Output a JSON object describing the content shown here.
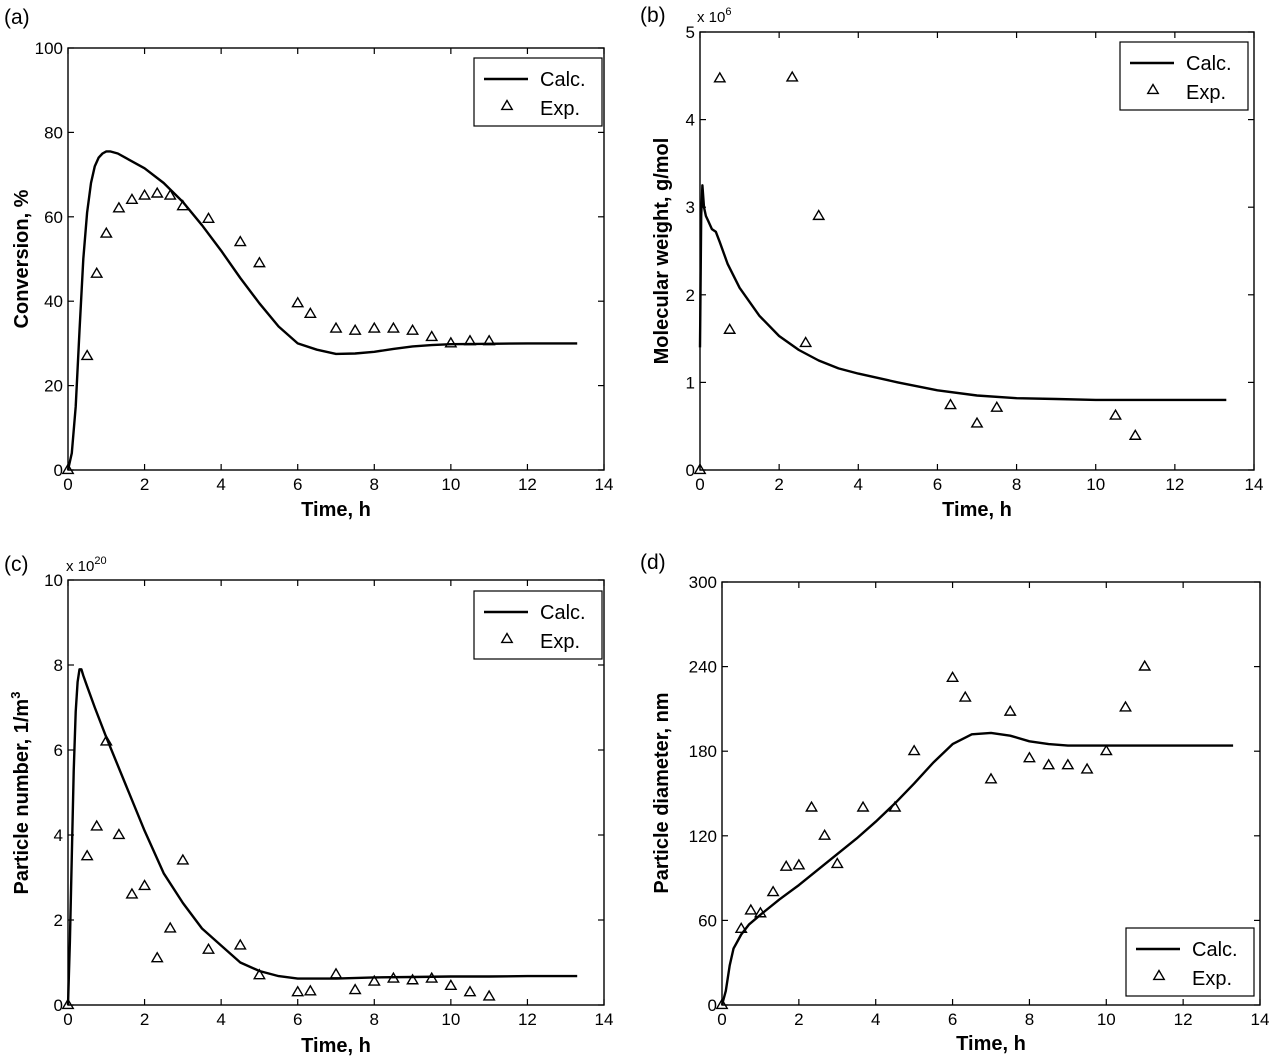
{
  "chart_data": [
    {
      "id": "a",
      "type": "line",
      "panel_label": "(a)",
      "xlabel": "Time, h",
      "ylabel": "Conversion, %",
      "ylabel_sup": "",
      "ylabel_tail": "",
      "xlim": [
        0,
        14
      ],
      "ylim": [
        0,
        100
      ],
      "xticks": [
        0,
        2,
        4,
        6,
        8,
        10,
        12,
        14
      ],
      "yticks": [
        0,
        20,
        40,
        60,
        80,
        100
      ],
      "multiplier_base": "",
      "multiplier_exp": "",
      "legend_position": "top-right",
      "series": [
        {
          "name": "Calc.",
          "style": "line",
          "x": [
            0,
            0.1,
            0.2,
            0.3,
            0.4,
            0.5,
            0.6,
            0.7,
            0.8,
            0.9,
            1.0,
            1.1,
            1.3,
            1.5,
            2.0,
            2.5,
            3.0,
            3.5,
            4.0,
            4.5,
            5.0,
            5.5,
            6.0,
            6.5,
            7.0,
            7.5,
            8.0,
            8.5,
            9.0,
            9.5,
            10,
            11,
            12,
            13.3
          ],
          "y": [
            0,
            4,
            15,
            33,
            50,
            61,
            68,
            72,
            74,
            75,
            75.5,
            75.5,
            75,
            74,
            71.5,
            68,
            63.5,
            58,
            52,
            45.5,
            39.5,
            34,
            30,
            28.5,
            27.5,
            27.6,
            28,
            28.7,
            29.3,
            29.6,
            29.8,
            29.9,
            30,
            30
          ]
        },
        {
          "name": "Exp.",
          "style": "marker",
          "x": [
            0,
            0.5,
            0.75,
            1.0,
            1.33,
            1.67,
            2.0,
            2.33,
            2.67,
            3.0,
            3.67,
            4.5,
            5.0,
            6.0,
            6.33,
            7.0,
            7.5,
            8.0,
            8.5,
            9.0,
            9.5,
            10.0,
            10.5,
            11.0
          ],
          "y": [
            0,
            27,
            46.5,
            56,
            62,
            64,
            65,
            65.5,
            65,
            62.5,
            59.5,
            54,
            49,
            39.5,
            37,
            33.5,
            33,
            33.5,
            33.5,
            33,
            31.5,
            30,
            30.5,
            30.5
          ]
        }
      ]
    },
    {
      "id": "b",
      "type": "line",
      "panel_label": "(b)",
      "xlabel": "Time, h",
      "ylabel": "Molecular weight, g/mol",
      "ylabel_sup": "",
      "ylabel_tail": "",
      "xlim": [
        0,
        14
      ],
      "ylim": [
        0,
        5
      ],
      "xticks": [
        0,
        2,
        4,
        6,
        8,
        10,
        12,
        14
      ],
      "yticks": [
        0,
        1,
        2,
        3,
        4,
        5
      ],
      "multiplier_base": "x 10",
      "multiplier_exp": "6",
      "legend_position": "top-right",
      "series": [
        {
          "name": "Calc.",
          "style": "line",
          "x": [
            0,
            0.03,
            0.06,
            0.1,
            0.15,
            0.2,
            0.3,
            0.4,
            0.5,
            0.7,
            1.0,
            1.5,
            2.0,
            2.5,
            3.0,
            3.5,
            4.0,
            5.0,
            6.0,
            7.0,
            8.0,
            9.0,
            10.0,
            11.0,
            12.0,
            13.3
          ],
          "y": [
            1.4,
            2.9,
            3.25,
            3.0,
            2.9,
            2.85,
            2.75,
            2.72,
            2.6,
            2.35,
            2.08,
            1.76,
            1.53,
            1.37,
            1.25,
            1.16,
            1.1,
            1.0,
            0.91,
            0.85,
            0.82,
            0.81,
            0.8,
            0.8,
            0.8,
            0.8
          ]
        },
        {
          "name": "Exp.",
          "style": "marker",
          "x": [
            0,
            0.5,
            0.75,
            2.33,
            2.67,
            3.0,
            6.33,
            7.0,
            7.5,
            10.5,
            11.0
          ],
          "y": [
            0,
            4.47,
            1.6,
            4.48,
            1.45,
            2.9,
            0.74,
            0.53,
            0.71,
            0.62,
            0.39
          ]
        }
      ]
    },
    {
      "id": "c",
      "type": "line",
      "panel_label": "(c)",
      "xlabel": "Time, h",
      "ylabel": "Particle number, 1/m",
      "ylabel_sup": "3",
      "ylabel_tail": "",
      "xlim": [
        0,
        14
      ],
      "ylim": [
        0,
        10
      ],
      "xticks": [
        0,
        2,
        4,
        6,
        8,
        10,
        12,
        14
      ],
      "yticks": [
        0,
        2,
        4,
        6,
        8,
        10
      ],
      "multiplier_base": "x 10",
      "multiplier_exp": "20",
      "legend_position": "top-right",
      "series": [
        {
          "name": "Calc.",
          "style": "line",
          "x": [
            0,
            0.05,
            0.1,
            0.15,
            0.2,
            0.25,
            0.3,
            0.35,
            0.4,
            0.5,
            0.7,
            1.0,
            1.5,
            2.0,
            2.5,
            3.0,
            3.5,
            4.0,
            4.5,
            5.0,
            5.5,
            6.0,
            7.0,
            8.0,
            9.0,
            10.0,
            11.0,
            12.0,
            13.3
          ],
          "y": [
            0,
            1.5,
            3.5,
            5.5,
            6.9,
            7.6,
            7.9,
            7.9,
            7.75,
            7.5,
            7.0,
            6.3,
            5.2,
            4.1,
            3.1,
            2.4,
            1.8,
            1.4,
            1.0,
            0.8,
            0.68,
            0.62,
            0.62,
            0.65,
            0.66,
            0.67,
            0.67,
            0.68,
            0.68
          ]
        },
        {
          "name": "Exp.",
          "style": "marker",
          "x": [
            0,
            0.5,
            0.75,
            1.0,
            1.33,
            1.67,
            2.0,
            2.33,
            2.67,
            3.0,
            3.67,
            4.5,
            5.0,
            6.0,
            6.33,
            7.0,
            7.5,
            8.0,
            8.5,
            9.0,
            9.5,
            10.0,
            10.5,
            11.0
          ],
          "y": [
            0,
            3.5,
            4.2,
            6.2,
            4.0,
            2.6,
            2.8,
            1.1,
            1.8,
            3.4,
            1.3,
            1.4,
            0.7,
            0.3,
            0.32,
            0.72,
            0.35,
            0.55,
            0.62,
            0.58,
            0.62,
            0.45,
            0.3,
            0.2
          ]
        }
      ]
    },
    {
      "id": "d",
      "type": "line",
      "panel_label": "(d)",
      "xlabel": "Time, h",
      "ylabel": "Particle diameter, nm",
      "ylabel_sup": "",
      "ylabel_tail": "",
      "xlim": [
        0,
        14
      ],
      "ylim": [
        0,
        300
      ],
      "xticks": [
        0,
        2,
        4,
        6,
        8,
        10,
        12,
        14
      ],
      "yticks": [
        0,
        60,
        120,
        180,
        240,
        300
      ],
      "multiplier_base": "",
      "multiplier_exp": "",
      "legend_position": "bottom-right",
      "series": [
        {
          "name": "Calc.",
          "style": "line",
          "x": [
            0,
            0.1,
            0.2,
            0.3,
            0.4,
            0.5,
            0.7,
            1.0,
            1.5,
            2.0,
            2.5,
            3.0,
            3.5,
            4.0,
            4.5,
            5.0,
            5.5,
            6.0,
            6.5,
            7.0,
            7.5,
            8.0,
            8.5,
            9.0,
            10.0,
            11.0,
            12.0,
            13.3
          ],
          "y": [
            0,
            10,
            28,
            40,
            45,
            50,
            57,
            64,
            75,
            85,
            96,
            107,
            118,
            130,
            143,
            157,
            172,
            185,
            192,
            193,
            191,
            187,
            185,
            184,
            184,
            184,
            184,
            184
          ]
        },
        {
          "name": "Exp.",
          "style": "marker",
          "x": [
            0,
            0.5,
            0.75,
            1.0,
            1.33,
            1.67,
            2.0,
            2.33,
            2.67,
            3.0,
            3.67,
            4.5,
            5.0,
            6.0,
            6.33,
            7.0,
            7.5,
            8.0,
            8.5,
            9.0,
            9.5,
            10.0,
            10.5,
            11.0
          ],
          "y": [
            0,
            54,
            67,
            65,
            80,
            98,
            99,
            140,
            120,
            100,
            140,
            140,
            180,
            232,
            218,
            160,
            208,
            175,
            170,
            170,
            167,
            180,
            211,
            240
          ]
        }
      ]
    }
  ]
}
